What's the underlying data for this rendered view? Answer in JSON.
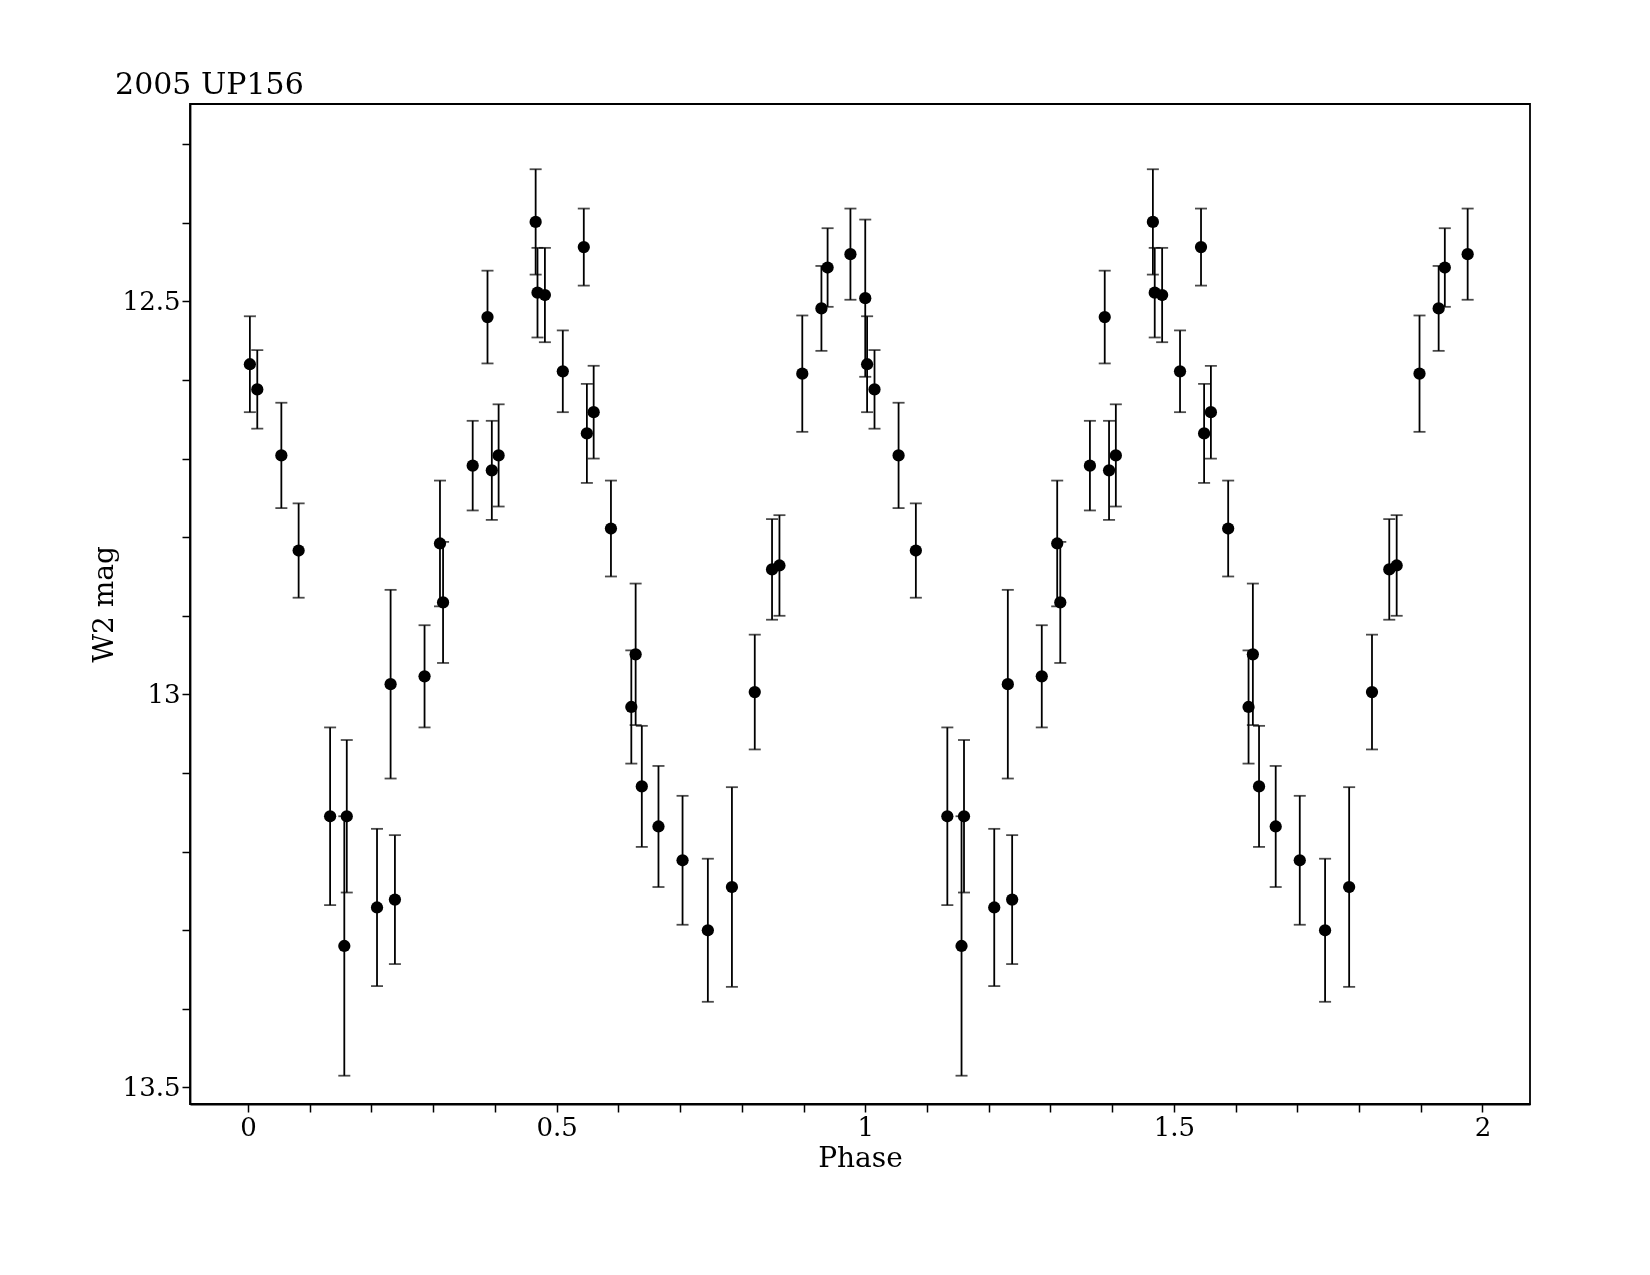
{
  "chart_data": {
    "type": "scatter",
    "title": "2005 UP156",
    "xlabel": "Phase",
    "ylabel": "W2 mag",
    "x": [
      0.003,
      0.015,
      0.054,
      0.082,
      0.133,
      0.16,
      0.156,
      0.209,
      0.231,
      0.238,
      0.286,
      0.311,
      0.316,
      0.364,
      0.388,
      0.395,
      0.406,
      0.466,
      0.469,
      0.481,
      0.51,
      0.544,
      0.549,
      0.56,
      0.588,
      0.621,
      0.628,
      0.638,
      0.665,
      0.704,
      0.745,
      0.784,
      0.821,
      0.849,
      0.861,
      0.898,
      0.929,
      0.939,
      0.976,
      1.0,
      1.003,
      1.015,
      1.054,
      1.082,
      1.133,
      1.16,
      1.156,
      1.209,
      1.231,
      1.238,
      1.286,
      1.311,
      1.316,
      1.364,
      1.388,
      1.395,
      1.406,
      1.466,
      1.469,
      1.481,
      1.51,
      1.544,
      1.549,
      1.56,
      1.588,
      1.621,
      1.628,
      1.638,
      1.665,
      1.704,
      1.745,
      1.784,
      1.821,
      1.849,
      1.861,
      1.898,
      1.929,
      1.939,
      1.976
    ],
    "series": [
      {
        "color": "#000000",
        "values": [
          12.58,
          12.612,
          12.696,
          12.817,
          13.155,
          13.155,
          13.32,
          13.271,
          12.987,
          13.261,
          12.977,
          12.808,
          12.883,
          12.709,
          12.52,
          12.715,
          12.696,
          12.399,
          12.489,
          12.492,
          12.589,
          12.431,
          12.668,
          12.641,
          12.789,
          13.016,
          12.949,
          13.117,
          13.168,
          13.211,
          13.3,
          13.245,
          12.997,
          12.841,
          12.836,
          12.592,
          12.509,
          12.457,
          12.44,
          12.496,
          12.58,
          12.612,
          12.696,
          12.817,
          13.155,
          13.155,
          13.32,
          13.271,
          12.987,
          13.261,
          12.977,
          12.808,
          12.883,
          12.709,
          12.52,
          12.715,
          12.696,
          12.399,
          12.489,
          12.492,
          12.589,
          12.431,
          12.668,
          12.641,
          12.789,
          13.016,
          12.949,
          13.117,
          13.168,
          13.211,
          13.3,
          13.245,
          12.997,
          12.841,
          12.836,
          12.592,
          12.509,
          12.457,
          12.44
        ],
        "errors": [
          0.061,
          0.05,
          0.067,
          0.06,
          0.113,
          0.097,
          0.165,
          0.1,
          0.12,
          0.082,
          0.065,
          0.08,
          0.077,
          0.057,
          0.059,
          0.063,
          0.065,
          0.067,
          0.057,
          0.06,
          0.052,
          0.049,
          0.063,
          0.059,
          0.061,
          0.072,
          0.09,
          0.077,
          0.077,
          0.082,
          0.091,
          0.127,
          0.073,
          0.064,
          0.064,
          0.074,
          0.054,
          0.05,
          0.058,
          0.1,
          0.061,
          0.05,
          0.067,
          0.06,
          0.113,
          0.097,
          0.165,
          0.1,
          0.12,
          0.082,
          0.065,
          0.08,
          0.077,
          0.057,
          0.059,
          0.063,
          0.065,
          0.067,
          0.057,
          0.06,
          0.052,
          0.049,
          0.063,
          0.059,
          0.061,
          0.072,
          0.09,
          0.077,
          0.077,
          0.082,
          0.091,
          0.127,
          0.073,
          0.064,
          0.064,
          0.074,
          0.054,
          0.05,
          0.058
        ]
      }
    ],
    "xlim": [
      -0.094,
      2.077
    ],
    "ylim": [
      13.521,
      12.249
    ],
    "xticks": [
      0,
      {
        "value": 0.1,
        "label": null
      },
      {
        "value": 0.2,
        "label": null
      },
      {
        "value": 0.3,
        "label": null
      },
      {
        "value": 0.4,
        "label": null
      },
      0.5,
      {
        "value": 0.6,
        "label": null
      },
      {
        "value": 0.7,
        "label": null
      },
      {
        "value": 0.8,
        "label": null
      },
      {
        "value": 0.9,
        "label": null
      },
      1,
      {
        "value": 1.1,
        "label": null
      },
      {
        "value": 1.2,
        "label": null
      },
      {
        "value": 1.3,
        "label": null
      },
      {
        "value": 1.4,
        "label": null
      },
      1.5,
      {
        "value": 1.6,
        "label": null
      },
      {
        "value": 1.7,
        "label": null
      },
      {
        "value": 1.8,
        "label": null
      },
      {
        "value": 1.9,
        "label": null
      },
      2
    ],
    "yticks": [
      {
        "value": 12.3,
        "label": null
      },
      {
        "value": 12.4,
        "label": null
      },
      12.5,
      {
        "value": 12.6,
        "label": null
      },
      {
        "value": 12.7,
        "label": null
      },
      {
        "value": 12.8,
        "label": null
      },
      {
        "value": 12.9,
        "label": null
      },
      13,
      {
        "value": 13.1,
        "label": null
      },
      {
        "value": 13.2,
        "label": null
      },
      {
        "value": 13.3,
        "label": null
      },
      {
        "value": 13.4,
        "label": null
      },
      13.5
    ],
    "marker": "circle",
    "grid": false
  }
}
